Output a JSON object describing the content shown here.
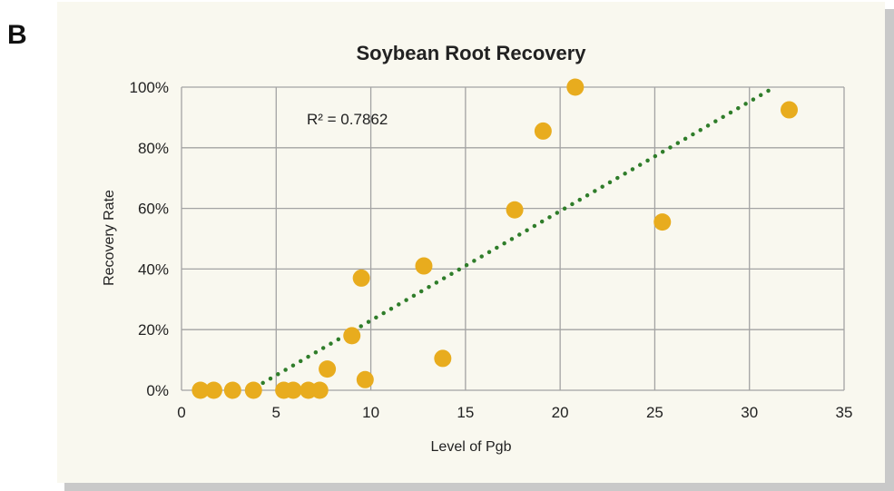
{
  "panel_label": "B",
  "chart_data": {
    "type": "scatter",
    "title": "Soybean Root Recovery",
    "xlabel": "Level of Pgb",
    "ylabel": "Recovery Rate",
    "xlim": [
      0,
      35
    ],
    "ylim": [
      0,
      100
    ],
    "xticks": [
      0,
      5,
      10,
      15,
      20,
      25,
      30,
      35
    ],
    "xtick_labels": [
      "0",
      "5",
      "10",
      "15",
      "20",
      "25",
      "30",
      "35"
    ],
    "yticks": [
      0,
      20,
      40,
      60,
      80,
      100
    ],
    "ytick_labels": [
      "0%",
      "20%",
      "40%",
      "60%",
      "80%",
      "100%"
    ],
    "grid": true,
    "legend": "none",
    "annotation": {
      "label": "R² = 0.7862",
      "r2": 0.7862
    },
    "series": [
      {
        "name": "Recovery",
        "color": "#e8ac1e",
        "points": [
          [
            1.0,
            0
          ],
          [
            1.7,
            0
          ],
          [
            2.7,
            0
          ],
          [
            3.8,
            0
          ],
          [
            5.4,
            0
          ],
          [
            5.9,
            0
          ],
          [
            6.7,
            0
          ],
          [
            7.3,
            0
          ],
          [
            7.7,
            7
          ],
          [
            9.0,
            18
          ],
          [
            9.5,
            37
          ],
          [
            9.7,
            3.5
          ],
          [
            12.8,
            41
          ],
          [
            13.8,
            10.5
          ],
          [
            17.6,
            59.5
          ],
          [
            19.1,
            85.5
          ],
          [
            20.8,
            100
          ],
          [
            25.4,
            55.5
          ],
          [
            32.1,
            92.5
          ]
        ]
      }
    ],
    "trendline": {
      "type": "linear",
      "slope": 3.61,
      "intercept": -13.1,
      "x_start": 4.3,
      "x_end": 31.3,
      "color": "#2f7d2a",
      "style": "dotted"
    }
  }
}
